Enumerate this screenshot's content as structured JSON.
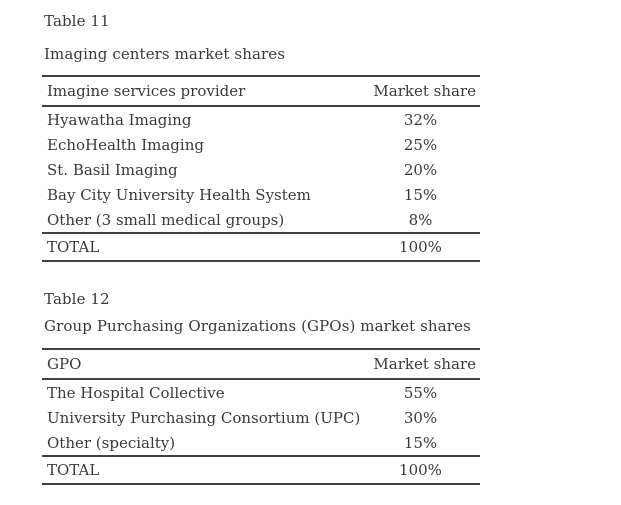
{
  "page": {
    "background_color": "#ffffff",
    "text_color": "#3a3a3a",
    "rule_color": "#414141"
  },
  "tables": [
    {
      "caption": "Table 11",
      "subtitle": "Imaging centers market shares",
      "columns": [
        "Imagine services provider",
        "Market share"
      ],
      "rows": [
        {
          "label": "Hyawatha Imaging",
          "share": "32%"
        },
        {
          "label": "EchoHealth Imaging",
          "share": "25%"
        },
        {
          "label": "St. Basil Imaging",
          "share": "20%"
        },
        {
          "label": "Bay City University Health System",
          "share": "15%"
        },
        {
          "label": "Other (3 small medical groups)",
          "share": "8%"
        }
      ],
      "total": {
        "label": "TOTAL",
        "share": "100%"
      }
    },
    {
      "caption": "Table 12",
      "subtitle": "Group Purchasing Organizations (GPOs) market shares",
      "columns": [
        "GPO",
        "Market share"
      ],
      "rows": [
        {
          "label": "The Hospital Collective",
          "share": "55%"
        },
        {
          "label": "University Purchasing Consortium (UPC)",
          "share": "30%"
        },
        {
          "label": "Other (specialty)",
          "share": "15%"
        }
      ],
      "total": {
        "label": "TOTAL",
        "share": "100%"
      }
    }
  ]
}
